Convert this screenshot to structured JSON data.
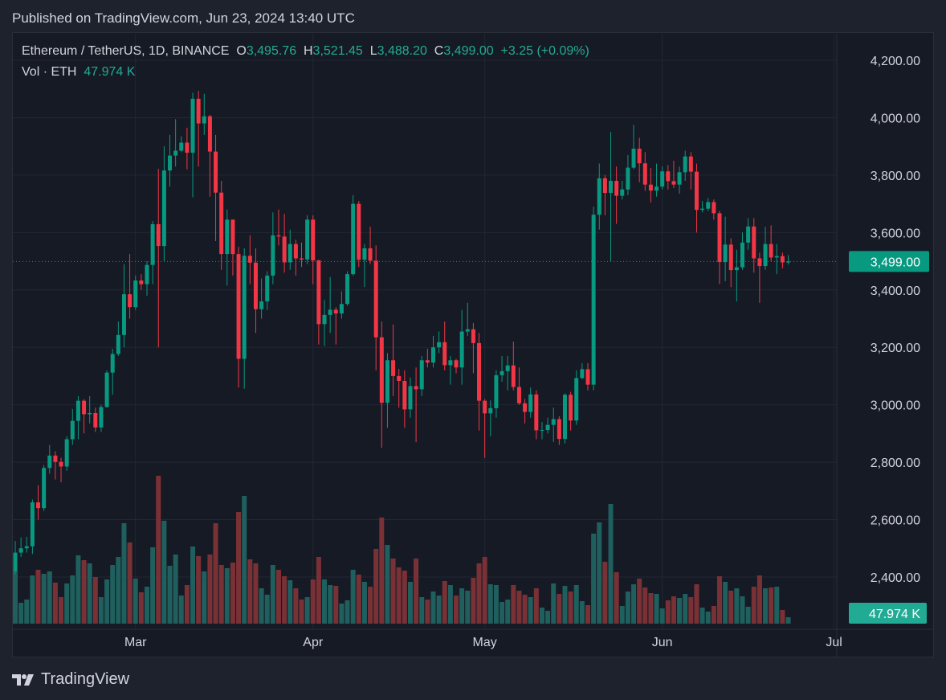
{
  "published": "Published on TradingView.com, Jun 23, 2024 13:40 UTC",
  "legend": {
    "symbol": "Ethereum / TetherUS, 1D, BINANCE",
    "o_label": "O",
    "o": "3,495.76",
    "h_label": "H",
    "h": "3,521.45",
    "l_label": "L",
    "l": "3,488.20",
    "c_label": "C",
    "c": "3,499.00",
    "change": "+3.25 (+0.09%)",
    "vol_label": "Vol · ETH",
    "vol": "47.974 K"
  },
  "footer": {
    "brand": "TradingView"
  },
  "colors": {
    "up": "#089981",
    "down": "#f23645",
    "up_vol": "#1f5f5e",
    "down_vol": "#7a3136",
    "bg": "#161a25"
  },
  "chart_data": {
    "type": "candlestick",
    "title": "Ethereum / TetherUS, 1D, BINANCE",
    "x_start": "2024-02-09",
    "interval": "1D",
    "ylim": [
      2250,
      4300
    ],
    "y_ticks": [
      4200,
      4000,
      3800,
      3600,
      3400,
      3200,
      3000,
      2800,
      2600,
      2400
    ],
    "y_tick_labels": [
      "4,200.00",
      "4,000.00",
      "3,800.00",
      "3,600.00",
      "3,400.00",
      "3,200.00",
      "3,000.00",
      "2,800.00",
      "2,600.00",
      "2,400.00"
    ],
    "x_ticks": [
      {
        "day_index": 21,
        "label": "Mar"
      },
      {
        "day_index": 52,
        "label": "Apr"
      },
      {
        "day_index": 82,
        "label": "May"
      },
      {
        "day_index": 113,
        "label": "Jun"
      },
      {
        "day_index": 143,
        "label": "Jul"
      }
    ],
    "last_price": 3499.0,
    "last_price_label": "3,499.00",
    "last_volume_label": "47.974 K",
    "volume_unit": "K ETH",
    "ohlc": [
      [
        2420,
        2525,
        2410,
        2485
      ],
      [
        2485,
        2538,
        2470,
        2500
      ],
      [
        2500,
        2540,
        2485,
        2507
      ],
      [
        2507,
        2670,
        2480,
        2660
      ],
      [
        2660,
        2720,
        2600,
        2640
      ],
      [
        2640,
        2790,
        2630,
        2780
      ],
      [
        2780,
        2860,
        2760,
        2823
      ],
      [
        2823,
        2838,
        2740,
        2801
      ],
      [
        2801,
        2815,
        2730,
        2785
      ],
      [
        2785,
        2890,
        2770,
        2880
      ],
      [
        2880,
        2985,
        2860,
        2944
      ],
      [
        2944,
        3030,
        2880,
        3014
      ],
      [
        3014,
        3020,
        2900,
        2967
      ],
      [
        2967,
        3030,
        2935,
        2971
      ],
      [
        2971,
        2990,
        2905,
        2921
      ],
      [
        2921,
        3000,
        2905,
        2992
      ],
      [
        2992,
        3120,
        2990,
        3112
      ],
      [
        3112,
        3195,
        3035,
        3177
      ],
      [
        3177,
        3290,
        3170,
        3243
      ],
      [
        3243,
        3490,
        3200,
        3385
      ],
      [
        3385,
        3525,
        3300,
        3340
      ],
      [
        3340,
        3450,
        3330,
        3433
      ],
      [
        3433,
        3455,
        3400,
        3420
      ],
      [
        3420,
        3500,
        3380,
        3487
      ],
      [
        3487,
        3640,
        3420,
        3629
      ],
      [
        3629,
        3822,
        3200,
        3553
      ],
      [
        3553,
        3900,
        3500,
        3816
      ],
      [
        3816,
        3940,
        3760,
        3868
      ],
      [
        3868,
        3995,
        3830,
        3885
      ],
      [
        3885,
        3935,
        3880,
        3913
      ],
      [
        3913,
        3965,
        3820,
        3878
      ],
      [
        3878,
        4087,
        3723,
        4066
      ],
      [
        4066,
        4093,
        3830,
        3980
      ],
      [
        3980,
        4083,
        3940,
        4005
      ],
      [
        4005,
        4010,
        3725,
        3882
      ],
      [
        3882,
        3940,
        3570,
        3739
      ],
      [
        3739,
        3780,
        3470,
        3525
      ],
      [
        3525,
        3680,
        3415,
        3645
      ],
      [
        3645,
        3645,
        3450,
        3525
      ],
      [
        3525,
        3550,
        3060,
        3160
      ],
      [
        3160,
        3545,
        3056,
        3519
      ],
      [
        3519,
        3590,
        3420,
        3495
      ],
      [
        3495,
        3545,
        3250,
        3333
      ],
      [
        3333,
        3440,
        3300,
        3360
      ],
      [
        3360,
        3465,
        3330,
        3450
      ],
      [
        3450,
        3670,
        3420,
        3590
      ],
      [
        3590,
        3680,
        3555,
        3586
      ],
      [
        3586,
        3665,
        3460,
        3496
      ],
      [
        3496,
        3610,
        3470,
        3560
      ],
      [
        3560,
        3575,
        3450,
        3510
      ],
      [
        3510,
        3565,
        3480,
        3506
      ],
      [
        3506,
        3660,
        3490,
        3645
      ],
      [
        3645,
        3660,
        3420,
        3503
      ],
      [
        3503,
        3505,
        3210,
        3281
      ],
      [
        3281,
        3365,
        3205,
        3313
      ],
      [
        3313,
        3445,
        3250,
        3331
      ],
      [
        3331,
        3340,
        3210,
        3318
      ],
      [
        3318,
        3395,
        3300,
        3351
      ],
      [
        3351,
        3465,
        3345,
        3455
      ],
      [
        3455,
        3730,
        3450,
        3700
      ],
      [
        3700,
        3710,
        3480,
        3505
      ],
      [
        3505,
        3560,
        3410,
        3545
      ],
      [
        3545,
        3620,
        3490,
        3502
      ],
      [
        3502,
        3555,
        3120,
        3235
      ],
      [
        3235,
        3290,
        2850,
        3007
      ],
      [
        3007,
        3180,
        2920,
        3155
      ],
      [
        3155,
        3280,
        3030,
        3100
      ],
      [
        3100,
        3125,
        2990,
        3083
      ],
      [
        3083,
        3120,
        2920,
        2984
      ],
      [
        2984,
        3095,
        2955,
        3065
      ],
      [
        3065,
        3130,
        2870,
        3054
      ],
      [
        3054,
        3170,
        3030,
        3155
      ],
      [
        3155,
        3195,
        3130,
        3147
      ],
      [
        3147,
        3240,
        3130,
        3200
      ],
      [
        3200,
        3255,
        3180,
        3218
      ],
      [
        3218,
        3290,
        3120,
        3138
      ],
      [
        3138,
        3170,
        3070,
        3155
      ],
      [
        3155,
        3160,
        3110,
        3130
      ],
      [
        3130,
        3330,
        3070,
        3255
      ],
      [
        3255,
        3355,
        3240,
        3263
      ],
      [
        3263,
        3285,
        3110,
        3215
      ],
      [
        3215,
        3250,
        2910,
        3014
      ],
      [
        3014,
        3020,
        2815,
        2970
      ],
      [
        2970,
        3015,
        2890,
        2988
      ],
      [
        2988,
        3120,
        2955,
        3103
      ],
      [
        3103,
        3170,
        3080,
        3117
      ],
      [
        3117,
        3170,
        3050,
        3137
      ],
      [
        3137,
        3220,
        3050,
        3062
      ],
      [
        3062,
        3130,
        3000,
        3005
      ],
      [
        3005,
        3020,
        2935,
        2975
      ],
      [
        2975,
        3060,
        2955,
        3036
      ],
      [
        3036,
        3050,
        2880,
        2911
      ],
      [
        2911,
        2940,
        2880,
        2912
      ],
      [
        2912,
        2955,
        2900,
        2930
      ],
      [
        2930,
        2990,
        2870,
        2950
      ],
      [
        2950,
        2960,
        2860,
        2881
      ],
      [
        2881,
        3040,
        2865,
        3035
      ],
      [
        3035,
        3045,
        2910,
        2945
      ],
      [
        2945,
        3120,
        2930,
        3093
      ],
      [
        3093,
        3145,
        3090,
        3124
      ],
      [
        3124,
        3145,
        3050,
        3070
      ],
      [
        3070,
        3690,
        3050,
        3662
      ],
      [
        3662,
        3840,
        3610,
        3789
      ],
      [
        3789,
        3800,
        3660,
        3738
      ],
      [
        3738,
        3950,
        3500,
        3780
      ],
      [
        3780,
        3830,
        3630,
        3728
      ],
      [
        3728,
        3780,
        3715,
        3750
      ],
      [
        3750,
        3870,
        3730,
        3826
      ],
      [
        3826,
        3975,
        3820,
        3892
      ],
      [
        3892,
        3930,
        3775,
        3841
      ],
      [
        3841,
        3880,
        3745,
        3767
      ],
      [
        3767,
        3825,
        3705,
        3746
      ],
      [
        3746,
        3840,
        3725,
        3760
      ],
      [
        3760,
        3830,
        3750,
        3813
      ],
      [
        3813,
        3835,
        3750,
        3779
      ],
      [
        3779,
        3850,
        3755,
        3767
      ],
      [
        3767,
        3830,
        3735,
        3810
      ],
      [
        3810,
        3885,
        3780,
        3865
      ],
      [
        3865,
        3880,
        3750,
        3812
      ],
      [
        3812,
        3840,
        3600,
        3679
      ],
      [
        3679,
        3710,
        3670,
        3683
      ],
      [
        3683,
        3720,
        3675,
        3706
      ],
      [
        3706,
        3715,
        3645,
        3667
      ],
      [
        3667,
        3675,
        3420,
        3497
      ],
      [
        3497,
        3655,
        3430,
        3558
      ],
      [
        3558,
        3580,
        3410,
        3469
      ],
      [
        3469,
        3540,
        3360,
        3479
      ],
      [
        3479,
        3600,
        3470,
        3565
      ],
      [
        3565,
        3650,
        3540,
        3621
      ],
      [
        3621,
        3650,
        3460,
        3510
      ],
      [
        3510,
        3530,
        3355,
        3483
      ],
      [
        3483,
        3620,
        3470,
        3560
      ],
      [
        3560,
        3625,
        3500,
        3513
      ],
      [
        3513,
        3560,
        3455,
        3518
      ],
      [
        3518,
        3530,
        3475,
        3495.76
      ],
      [
        3495.76,
        3521.45,
        3488.2,
        3499
      ]
    ],
    "volume": [
      396,
      156,
      180,
      360,
      402,
      372,
      390,
      306,
      198,
      300,
      360,
      510,
      474,
      450,
      348,
      198,
      330,
      438,
      498,
      750,
      606,
      336,
      234,
      276,
      570,
      1104,
      768,
      432,
      516,
      210,
      288,
      576,
      504,
      390,
      516,
      750,
      438,
      414,
      456,
      834,
      954,
      480,
      450,
      264,
      216,
      438,
      402,
      354,
      324,
      264,
      180,
      198,
      330,
      498,
      330,
      288,
      282,
      150,
      174,
      402,
      366,
      312,
      276,
      558,
      792,
      588,
      486,
      420,
      396,
      312,
      486,
      198,
      180,
      240,
      210,
      318,
      288,
      210,
      264,
      246,
      342,
      450,
      498,
      294,
      288,
      162,
      180,
      288,
      246,
      216,
      198,
      264,
      120,
      96,
      300,
      222,
      282,
      240,
      288,
      168,
      138,
      672,
      756,
      462,
      894,
      384,
      132,
      240,
      294,
      336,
      270,
      228,
      222,
      114,
      174,
      204,
      192,
      222,
      198,
      294,
      120,
      90,
      132,
      354,
      312,
      246,
      264,
      204,
      126,
      276,
      360,
      264,
      270,
      276,
      102,
      48
    ]
  }
}
